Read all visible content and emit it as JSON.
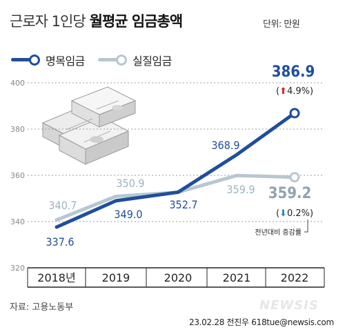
{
  "header": {
    "title_light": "근로자 1인당",
    "title_bold": "월평균 임금총액",
    "unit": "단위: 만원"
  },
  "legend": {
    "nominal": "명목임금",
    "real": "실질임금"
  },
  "chart_data": {
    "type": "line",
    "categories": [
      "2018년",
      "2019",
      "2020",
      "2021",
      "2022"
    ],
    "series": [
      {
        "name": "명목임금",
        "values": [
          337.6,
          349.0,
          352.7,
          368.9,
          386.9
        ],
        "color": "#1f4e9c"
      },
      {
        "name": "실질임금",
        "values": [
          340.7,
          350.9,
          352.7,
          359.9,
          359.2
        ],
        "color": "#b8c7cf"
      }
    ],
    "value_labels": {
      "명목임금": [
        "337.6",
        "349.0",
        "352.7",
        "368.9",
        "386.9"
      ],
      "실질임금": [
        "340.7",
        "350.9",
        "",
        "359.9",
        "359.2"
      ]
    },
    "yticks": [
      320,
      340,
      360,
      380,
      400
    ],
    "ylim": [
      320,
      400
    ],
    "grid": true,
    "annotations": {
      "nominal_change": "4.9%",
      "real_change": "0.2%",
      "note": "전년대비 증감률"
    },
    "colors": {
      "up": "#e0242b",
      "down": "#2a86c8",
      "dark_label": "#1f4e9c",
      "light_label": "#9fb4bf",
      "grid": "#9a9a9a"
    }
  },
  "footer": {
    "source": "자료: 고용노동부",
    "credit": "23.02.28 전진우 618tue@newsis.com",
    "watermark": "NEWSIS"
  }
}
